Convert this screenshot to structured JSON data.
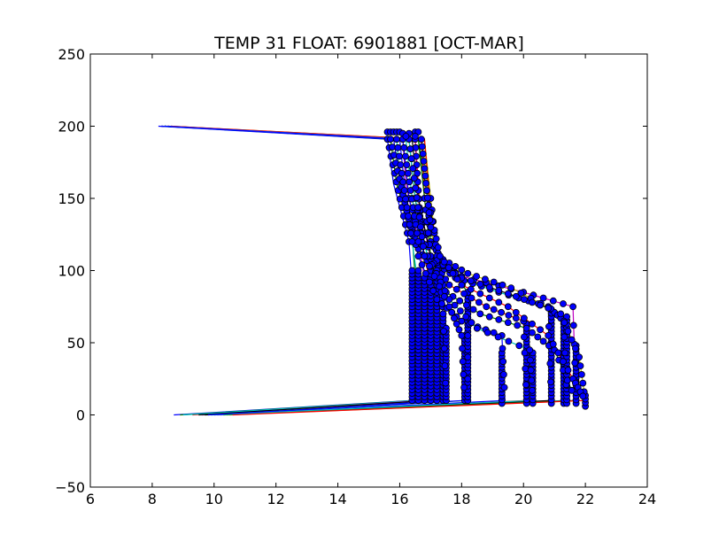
{
  "chart_data": {
    "type": "line",
    "title": "TEMP 31 FLOAT: 6901881 [OCT-MAR]",
    "xlabel": "",
    "ylabel": "",
    "xlim": [
      6,
      24
    ],
    "ylim": [
      -50,
      250
    ],
    "x_ticks": [
      "6",
      "8",
      "10",
      "12",
      "14",
      "16",
      "18",
      "20",
      "22",
      "24"
    ],
    "y_ticks": [
      "250",
      "200",
      "150",
      "100",
      "50",
      "0",
      "−50"
    ],
    "grid": false,
    "legend": "none",
    "series": [
      {
        "color": "#0000ff",
        "points": [
          [
            8.2,
            200
          ],
          [
            15.6,
            191
          ],
          [
            15.8,
            160
          ],
          [
            16.3,
            120
          ],
          [
            16.4,
            90
          ],
          [
            16.4,
            10
          ],
          [
            8.7,
            0
          ]
        ]
      },
      {
        "color": "#008000",
        "points": [
          [
            8.4,
            200
          ],
          [
            15.7,
            191
          ],
          [
            15.9,
            160
          ],
          [
            16.4,
            125
          ],
          [
            16.5,
            95
          ],
          [
            16.5,
            10
          ],
          [
            8.9,
            0
          ]
        ]
      },
      {
        "color": "#ff0000",
        "points": [
          [
            8.5,
            200
          ],
          [
            16.5,
            191
          ],
          [
            16.6,
            160
          ],
          [
            16.7,
            120
          ],
          [
            16.9,
            100
          ],
          [
            16.9,
            10
          ],
          [
            9.3,
            0
          ]
        ]
      },
      {
        "color": "#00bfbf",
        "points": [
          [
            8.3,
            200
          ],
          [
            15.9,
            191
          ],
          [
            16.0,
            160
          ],
          [
            16.4,
            120
          ],
          [
            16.6,
            90
          ],
          [
            16.6,
            10
          ],
          [
            9.0,
            0
          ]
        ]
      },
      {
        "color": "#bf00bf",
        "points": [
          [
            8.6,
            200
          ],
          [
            16.1,
            191
          ],
          [
            16.2,
            160
          ],
          [
            16.6,
            120
          ],
          [
            16.8,
            95
          ],
          [
            16.8,
            10
          ],
          [
            9.6,
            0
          ]
        ]
      },
      {
        "color": "#bfbf00",
        "points": [
          [
            8.4,
            200
          ],
          [
            16.7,
            191
          ],
          [
            16.9,
            160
          ],
          [
            17.0,
            130
          ],
          [
            17.2,
            105
          ],
          [
            17.2,
            10
          ],
          [
            10.0,
            0
          ]
        ]
      },
      {
        "color": "#000000",
        "points": [
          [
            8.3,
            200
          ],
          [
            16.3,
            191
          ],
          [
            16.5,
            150
          ],
          [
            16.8,
            110
          ],
          [
            17.0,
            100
          ],
          [
            17.0,
            10
          ],
          [
            9.5,
            0
          ]
        ]
      },
      {
        "color": "#0000ff",
        "points": [
          [
            8.3,
            200
          ],
          [
            15.8,
            191
          ],
          [
            16.1,
            150
          ],
          [
            16.6,
            115
          ],
          [
            17.3,
            95
          ],
          [
            17.4,
            70
          ],
          [
            17.5,
            10
          ],
          [
            10.2,
            0
          ]
        ]
      },
      {
        "color": "#008000",
        "points": [
          [
            8.4,
            200
          ],
          [
            16.6,
            191
          ],
          [
            16.9,
            150
          ],
          [
            17.0,
            120
          ],
          [
            17.3,
            110
          ],
          [
            18.2,
            85
          ],
          [
            18.2,
            10
          ],
          [
            9.8,
            0
          ]
        ]
      },
      {
        "color": "#ff0000",
        "points": [
          [
            8.5,
            200
          ],
          [
            16.7,
            191
          ],
          [
            16.8,
            150
          ],
          [
            17.0,
            110
          ],
          [
            17.6,
            90
          ],
          [
            18.8,
            75
          ],
          [
            20.0,
            65
          ],
          [
            20.1,
            10
          ],
          [
            10.5,
            0
          ]
        ]
      },
      {
        "color": "#00bfbf",
        "points": [
          [
            8.4,
            200
          ],
          [
            16.2,
            191
          ],
          [
            16.4,
            150
          ],
          [
            16.9,
            110
          ],
          [
            17.8,
            95
          ],
          [
            19.2,
            85
          ],
          [
            20.8,
            75
          ],
          [
            21.3,
            65
          ],
          [
            21.4,
            10
          ],
          [
            9.9,
            0
          ]
        ]
      },
      {
        "color": "#bf00bf",
        "points": [
          [
            8.5,
            200
          ],
          [
            16.5,
            191
          ],
          [
            16.6,
            150
          ],
          [
            17.0,
            108
          ],
          [
            18.0,
            96
          ],
          [
            20.0,
            85
          ],
          [
            21.6,
            75
          ],
          [
            21.7,
            10
          ],
          [
            10.1,
            0
          ]
        ]
      },
      {
        "color": "#bfbf00",
        "points": [
          [
            8.6,
            200
          ],
          [
            16.8,
            191
          ],
          [
            17.0,
            150
          ],
          [
            17.2,
            110
          ],
          [
            18.2,
            98
          ],
          [
            19.6,
            88
          ],
          [
            21.2,
            70
          ],
          [
            21.8,
            40
          ],
          [
            22.0,
            10
          ],
          [
            10.4,
            0
          ]
        ]
      },
      {
        "color": "#000000",
        "points": [
          [
            8.4,
            200
          ],
          [
            16.4,
            191
          ],
          [
            16.6,
            150
          ],
          [
            17.0,
            110
          ],
          [
            18.0,
            95
          ],
          [
            19.5,
            84
          ],
          [
            20.8,
            74
          ],
          [
            20.9,
            10
          ],
          [
            9.7,
            0
          ]
        ]
      },
      {
        "color": "#0000ff",
        "points": [
          [
            8.3,
            200
          ],
          [
            16.0,
            191
          ],
          [
            16.2,
            150
          ],
          [
            16.6,
            110
          ],
          [
            17.2,
            80
          ],
          [
            18.0,
            65
          ],
          [
            19.3,
            55
          ],
          [
            19.4,
            10
          ],
          [
            10.0,
            0
          ]
        ]
      },
      {
        "color": "#008000",
        "points": [
          [
            8.5,
            200
          ],
          [
            16.6,
            191
          ],
          [
            16.8,
            150
          ],
          [
            17.0,
            110
          ],
          [
            17.5,
            85
          ],
          [
            18.6,
            70
          ],
          [
            20.1,
            60
          ],
          [
            21.0,
            45
          ],
          [
            21.7,
            10
          ],
          [
            10.3,
            0
          ]
        ]
      },
      {
        "color": "#ff0000",
        "points": [
          [
            8.6,
            200
          ],
          [
            16.8,
            191
          ],
          [
            17.0,
            140
          ],
          [
            17.3,
            110
          ],
          [
            18.0,
            90
          ],
          [
            19.5,
            75
          ],
          [
            20.8,
            55
          ],
          [
            21.6,
            25
          ],
          [
            22.0,
            10
          ],
          [
            10.6,
            0
          ]
        ]
      },
      {
        "color": "#00bfbf",
        "points": [
          [
            8.4,
            200
          ],
          [
            16.3,
            191
          ],
          [
            16.5,
            150
          ],
          [
            16.9,
            110
          ],
          [
            17.6,
            80
          ],
          [
            18.5,
            60
          ],
          [
            20.2,
            45
          ],
          [
            20.3,
            10
          ],
          [
            9.9,
            0
          ]
        ]
      },
      {
        "color": "#0000ff",
        "points": [
          [
            8.4,
            200
          ],
          [
            16.1,
            191
          ],
          [
            16.3,
            150
          ],
          [
            16.8,
            110
          ],
          [
            17.6,
            75
          ],
          [
            18.0,
            55
          ],
          [
            18.1,
            10
          ],
          [
            9.8,
            0
          ]
        ]
      }
    ],
    "markers": {
      "color": "#0000ff",
      "edge": "#000000",
      "columns": [
        {
          "x": 16.4,
          "y": [
            10,
            100
          ]
        },
        {
          "x": 16.6,
          "y": [
            10,
            100
          ]
        },
        {
          "x": 16.8,
          "y": [
            10,
            95
          ]
        },
        {
          "x": 17.0,
          "y": [
            10,
            100
          ]
        },
        {
          "x": 17.2,
          "y": [
            10,
            100
          ]
        },
        {
          "x": 17.4,
          "y": [
            10,
            70
          ]
        },
        {
          "x": 17.5,
          "y": [
            10,
            60
          ]
        },
        {
          "x": 18.1,
          "y": [
            10,
            55
          ]
        },
        {
          "x": 18.2,
          "y": [
            10,
            85
          ]
        },
        {
          "x": 19.3,
          "y": [
            8,
            45
          ]
        },
        {
          "x": 20.1,
          "y": [
            8,
            65
          ]
        },
        {
          "x": 20.3,
          "y": [
            8,
            45
          ]
        },
        {
          "x": 20.9,
          "y": [
            8,
            74
          ]
        },
        {
          "x": 21.3,
          "y": [
            8,
            65
          ]
        },
        {
          "x": 21.4,
          "y": [
            8,
            70
          ]
        },
        {
          "x": 21.7,
          "y": [
            8,
            50
          ]
        },
        {
          "x": 22.0,
          "y": [
            6,
            15
          ]
        }
      ],
      "top_cluster": [
        [
          15.6,
          196
        ],
        [
          15.7,
          196
        ],
        [
          15.8,
          196
        ],
        [
          15.9,
          196
        ],
        [
          16.0,
          196
        ],
        [
          16.1,
          195
        ],
        [
          16.3,
          195
        ],
        [
          16.5,
          196
        ],
        [
          16.6,
          196
        ],
        [
          16.5,
          193
        ],
        [
          16.2,
          193
        ]
      ]
    }
  }
}
